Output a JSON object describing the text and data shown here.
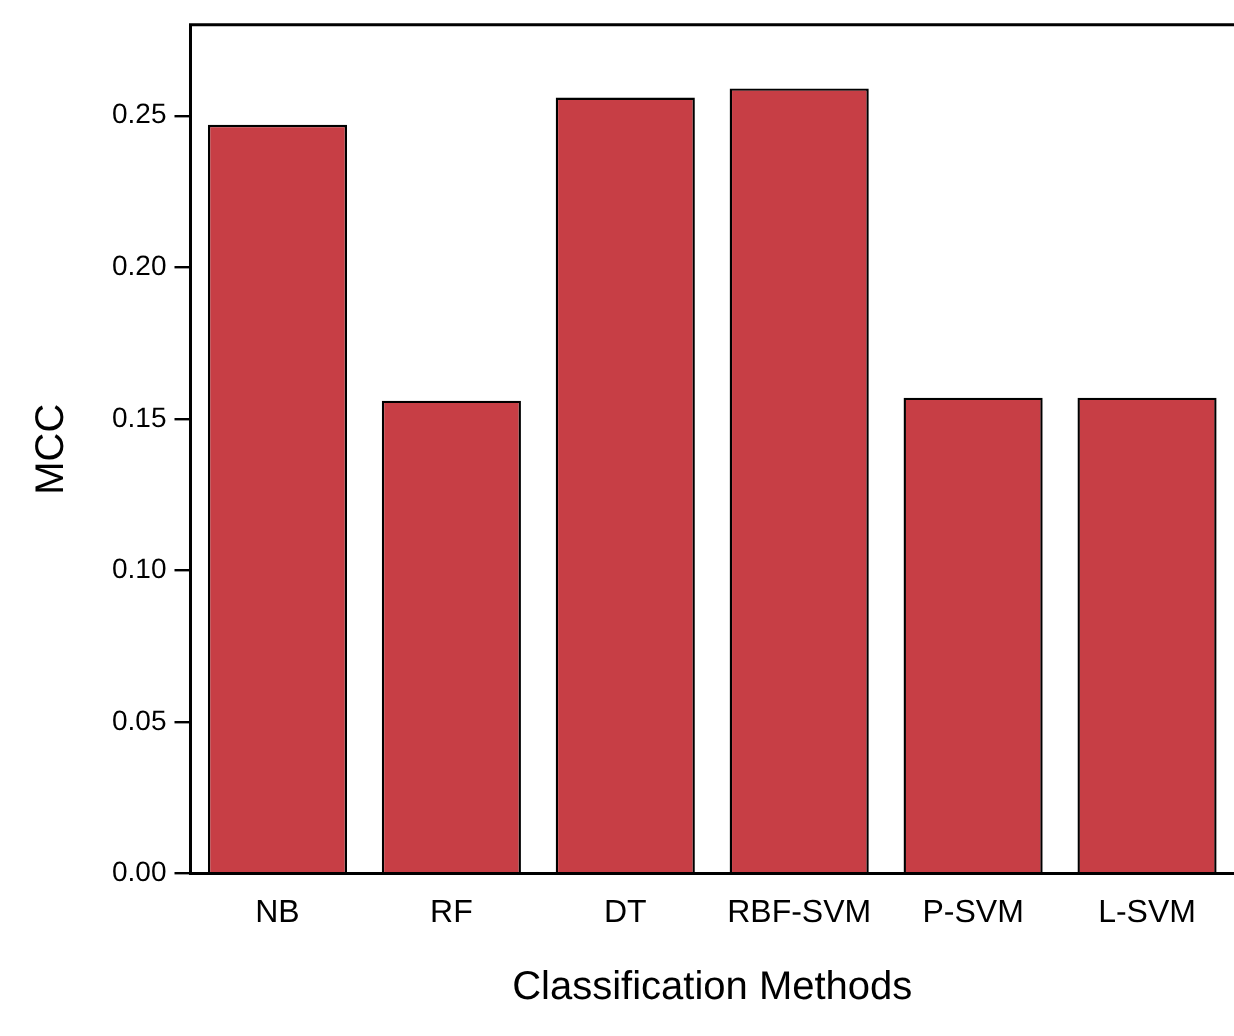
{
  "chart_data": {
    "type": "bar",
    "xlabel": "Classification Methods",
    "ylabel": "MCC",
    "categories": [
      "NB",
      "RF",
      "DT",
      "RBF-SVM",
      "P-SVM",
      "L-SVM"
    ],
    "values": [
      0.247,
      0.156,
      0.256,
      0.259,
      0.157,
      0.157
    ],
    "color": "#c73e45",
    "ylim": [
      0,
      0.28
    ],
    "yticks": [
      {
        "value": 0,
        "label": "0.00"
      },
      0.05,
      {
        "value": 0.1,
        "label": "0.10"
      },
      0.15,
      {
        "value": 0.2,
        "label": "0.20"
      },
      0.25
    ],
    "grid": false,
    "legend": false
  }
}
